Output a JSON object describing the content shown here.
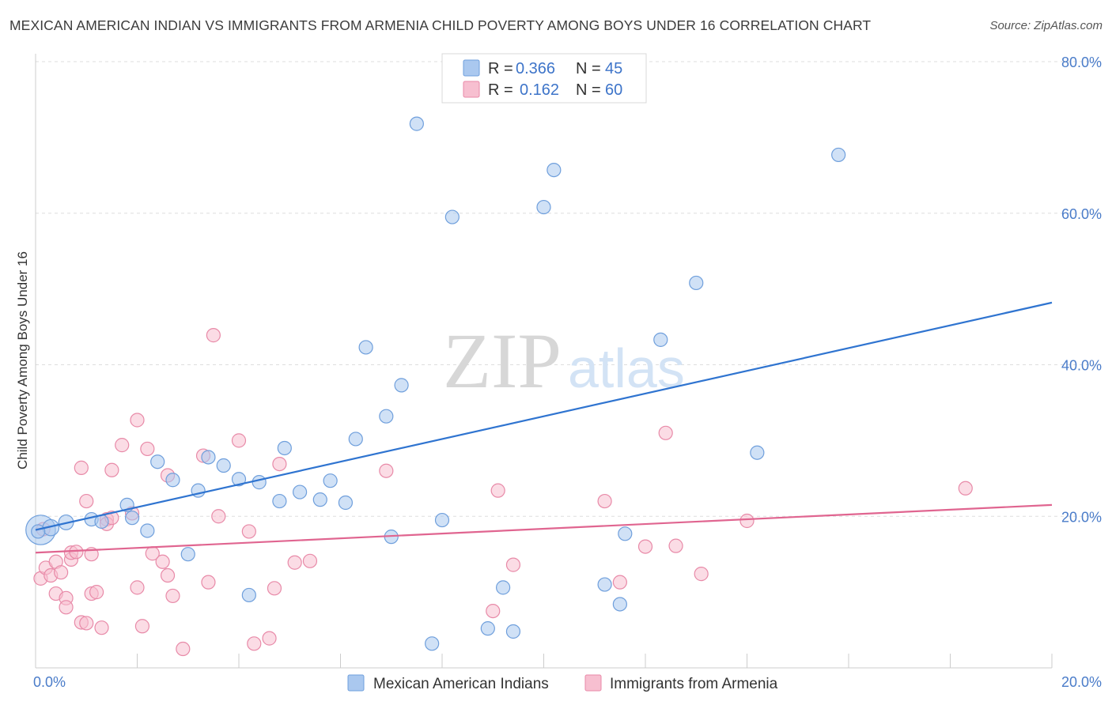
{
  "title": "MEXICAN AMERICAN INDIAN VS IMMIGRANTS FROM ARMENIA CHILD POVERTY AMONG BOYS UNDER 16 CORRELATION CHART",
  "source": "Source: ZipAtlas.com",
  "watermark": {
    "zip": "ZIP",
    "atlas": "atlas"
  },
  "legend_top": [
    {
      "r_label": "R =",
      "r_value": "0.366",
      "n_label": "N =",
      "n_value": "45"
    },
    {
      "r_label": "R =",
      "r_value": "0.162",
      "n_label": "N =",
      "n_value": "60"
    }
  ],
  "legend_bottom": [
    "Mexican American Indians",
    "Immigrants from Armenia"
  ],
  "colors": {
    "blue_fill": "#aac8ef",
    "blue_stroke": "#6f9fdc",
    "blue_line": "#2f74d0",
    "pink_fill": "#f7bfd0",
    "pink_stroke": "#e88aa8",
    "pink_line": "#e06590",
    "grid": "#dddddd",
    "tick_text": "#4a7cc9"
  },
  "chart_data": {
    "type": "scatter",
    "title": "MEXICAN AMERICAN INDIAN VS IMMIGRANTS FROM ARMENIA CHILD POVERTY AMONG BOYS UNDER 16 CORRELATION CHART",
    "xlabel": "",
    "ylabel": "Child Poverty Among Boys Under 16",
    "xlim": [
      0,
      20
    ],
    "ylim": [
      0,
      80
    ],
    "x_tick_labels": [
      "0.0%",
      "20.0%"
    ],
    "y_ticks": [
      20,
      40,
      60,
      80
    ],
    "y_tick_labels": [
      "20.0%",
      "40.0%",
      "60.0%",
      "80.0%"
    ],
    "series": [
      {
        "name": "Mexican American Indians",
        "r": 0.366,
        "n": 45,
        "trend": {
          "x": [
            0,
            20
          ],
          "y": [
            18.2,
            48.2
          ]
        },
        "points": [
          [
            0.1,
            18.2,
            2.2
          ],
          [
            0.3,
            18.5,
            1.2
          ],
          [
            0.6,
            19.2,
            1.1
          ],
          [
            1.1,
            19.6,
            1.0
          ],
          [
            1.3,
            19.3,
            1.0
          ],
          [
            1.8,
            21.5,
            1.0
          ],
          [
            1.9,
            19.8,
            1.0
          ],
          [
            2.2,
            18.1,
            1.0
          ],
          [
            2.4,
            27.2,
            1.0
          ],
          [
            2.7,
            24.8,
            1.0
          ],
          [
            3.0,
            15.0,
            1.0
          ],
          [
            3.2,
            23.4,
            1.0
          ],
          [
            3.4,
            27.8,
            1.0
          ],
          [
            3.7,
            26.7,
            1.0
          ],
          [
            4.0,
            24.9,
            1.0
          ],
          [
            4.2,
            9.6,
            1.0
          ],
          [
            4.4,
            24.5,
            1.0
          ],
          [
            4.8,
            22.0,
            1.0
          ],
          [
            4.9,
            29.0,
            1.0
          ],
          [
            5.2,
            23.2,
            1.0
          ],
          [
            5.6,
            22.2,
            1.0
          ],
          [
            5.8,
            24.7,
            1.0
          ],
          [
            6.1,
            21.8,
            1.0
          ],
          [
            6.3,
            30.2,
            1.0
          ],
          [
            6.5,
            42.3,
            1.0
          ],
          [
            6.9,
            33.2,
            1.0
          ],
          [
            7.0,
            17.3,
            1.0
          ],
          [
            7.2,
            37.3,
            1.0
          ],
          [
            7.5,
            71.8,
            1.0
          ],
          [
            7.8,
            3.2,
            1.0
          ],
          [
            8.0,
            19.5,
            1.0
          ],
          [
            8.2,
            59.5,
            1.0
          ],
          [
            8.9,
            5.2,
            1.0
          ],
          [
            9.2,
            10.6,
            1.0
          ],
          [
            9.4,
            4.8,
            1.0
          ],
          [
            10.0,
            60.8,
            1.0
          ],
          [
            10.2,
            65.7,
            1.0
          ],
          [
            11.2,
            11.0,
            1.0
          ],
          [
            11.5,
            8.4,
            1.0
          ],
          [
            11.6,
            17.7,
            1.0
          ],
          [
            12.3,
            43.3,
            1.0
          ],
          [
            13.0,
            50.8,
            1.0
          ],
          [
            14.2,
            28.4,
            1.0
          ],
          [
            15.8,
            67.7,
            1.0
          ],
          [
            0.05,
            18.0,
            1.0
          ]
        ]
      },
      {
        "name": "Immigrants from Armenia",
        "r": 0.162,
        "n": 60,
        "trend": {
          "x": [
            0,
            20
          ],
          "y": [
            15.2,
            21.5
          ]
        },
        "points": [
          [
            0.1,
            11.8,
            1.0
          ],
          [
            0.15,
            18.3,
            1.0
          ],
          [
            0.2,
            13.2,
            1.0
          ],
          [
            0.3,
            12.2,
            1.0
          ],
          [
            0.4,
            14.0,
            1.0
          ],
          [
            0.4,
            9.8,
            1.0
          ],
          [
            0.5,
            12.6,
            1.0
          ],
          [
            0.6,
            9.2,
            1.0
          ],
          [
            0.6,
            8.0,
            1.0
          ],
          [
            0.7,
            14.3,
            1.0
          ],
          [
            0.7,
            15.2,
            1.0
          ],
          [
            0.8,
            15.3,
            1.0
          ],
          [
            0.9,
            6.0,
            1.0
          ],
          [
            0.9,
            26.4,
            1.0
          ],
          [
            1.0,
            5.9,
            1.0
          ],
          [
            1.0,
            22.0,
            1.0
          ],
          [
            1.1,
            9.8,
            1.0
          ],
          [
            1.1,
            15.0,
            1.0
          ],
          [
            1.2,
            10.0,
            1.0
          ],
          [
            1.3,
            5.3,
            1.0
          ],
          [
            1.4,
            19.6,
            1.0
          ],
          [
            1.4,
            19.0,
            1.0
          ],
          [
            1.5,
            19.8,
            1.0
          ],
          [
            1.5,
            26.1,
            1.0
          ],
          [
            1.7,
            29.4,
            1.0
          ],
          [
            1.9,
            20.4,
            1.0
          ],
          [
            2.0,
            10.6,
            1.0
          ],
          [
            2.0,
            32.7,
            1.0
          ],
          [
            2.1,
            5.5,
            1.0
          ],
          [
            2.2,
            28.9,
            1.0
          ],
          [
            2.3,
            15.1,
            1.0
          ],
          [
            2.5,
            14.0,
            1.0
          ],
          [
            2.6,
            12.2,
            1.0
          ],
          [
            2.6,
            25.4,
            1.0
          ],
          [
            2.7,
            9.5,
            1.0
          ],
          [
            2.9,
            2.5,
            1.0
          ],
          [
            3.3,
            28.0,
            1.0
          ],
          [
            3.4,
            11.3,
            1.0
          ],
          [
            3.5,
            43.9,
            1.0
          ],
          [
            3.6,
            20.0,
            1.0
          ],
          [
            4.0,
            30.0,
            1.0
          ],
          [
            4.2,
            18.0,
            1.0
          ],
          [
            4.3,
            3.2,
            1.0
          ],
          [
            4.6,
            3.9,
            1.0
          ],
          [
            4.7,
            10.5,
            1.0
          ],
          [
            4.8,
            26.9,
            1.0
          ],
          [
            5.1,
            13.9,
            1.0
          ],
          [
            5.4,
            14.1,
            1.0
          ],
          [
            6.9,
            26.0,
            1.0
          ],
          [
            9.0,
            7.5,
            1.0
          ],
          [
            9.1,
            23.4,
            1.0
          ],
          [
            9.4,
            13.6,
            1.0
          ],
          [
            11.2,
            22.0,
            1.0
          ],
          [
            11.5,
            11.3,
            1.0
          ],
          [
            12.0,
            16.0,
            1.0
          ],
          [
            12.4,
            31.0,
            1.0
          ],
          [
            12.6,
            16.1,
            1.0
          ],
          [
            13.1,
            12.4,
            1.0
          ],
          [
            14.0,
            19.4,
            1.0
          ],
          [
            18.3,
            23.7,
            1.0
          ]
        ]
      }
    ]
  }
}
